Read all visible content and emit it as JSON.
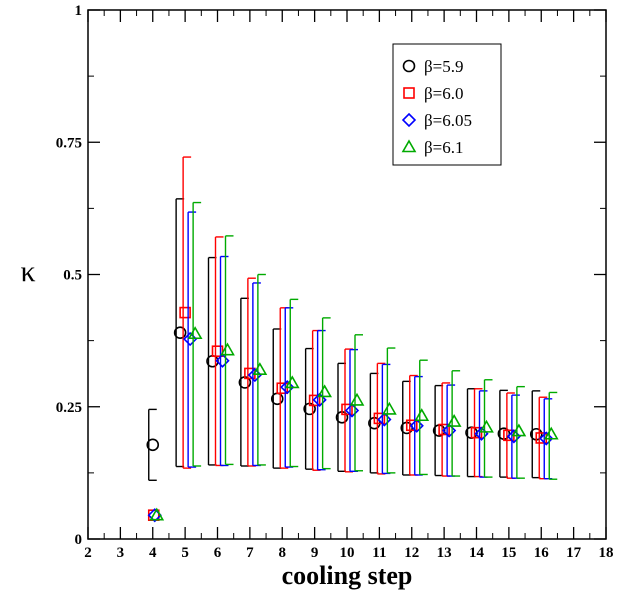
{
  "chart_data": {
    "type": "scatter",
    "title": "",
    "xlabel": "cooling step",
    "ylabel": "κ",
    "xlim": [
      2,
      18
    ],
    "ylim": [
      0,
      1
    ],
    "x_ticks": [
      2,
      3,
      4,
      5,
      6,
      7,
      8,
      9,
      10,
      11,
      12,
      13,
      14,
      15,
      16,
      17,
      18
    ],
    "x_tick_labels": [
      "2",
      "3",
      "4",
      "5",
      "6",
      "7",
      "8",
      "9",
      "10",
      "11",
      "12",
      "13",
      "14",
      "15",
      "16",
      "17",
      "18"
    ],
    "y_ticks": [
      0,
      0.25,
      0.5,
      0.75,
      1
    ],
    "y_tick_labels": [
      "0",
      "0.25",
      "0.5",
      "0.75",
      "1"
    ],
    "grid": false,
    "legend_position": "top-right",
    "series": [
      {
        "name": "β=5.9",
        "marker": "circle",
        "color": "#000000",
        "points": [
          {
            "x": 4,
            "y": 0.178,
            "err_low": 0.111,
            "err_high": 0.245
          },
          {
            "x": 5,
            "y": 0.39,
            "err_low": 0.137,
            "err_high": 0.643
          },
          {
            "x": 6,
            "y": 0.336,
            "err_low": 0.14,
            "err_high": 0.532
          },
          {
            "x": 7,
            "y": 0.296,
            "err_low": 0.138,
            "err_high": 0.455
          },
          {
            "x": 8,
            "y": 0.265,
            "err_low": 0.134,
            "err_high": 0.397
          },
          {
            "x": 9,
            "y": 0.246,
            "err_low": 0.132,
            "err_high": 0.36
          },
          {
            "x": 10,
            "y": 0.23,
            "err_low": 0.128,
            "err_high": 0.332
          },
          {
            "x": 11,
            "y": 0.219,
            "err_low": 0.125,
            "err_high": 0.313
          },
          {
            "x": 12,
            "y": 0.21,
            "err_low": 0.121,
            "err_high": 0.298
          },
          {
            "x": 13,
            "y": 0.205,
            "err_low": 0.12,
            "err_high": 0.29
          },
          {
            "x": 14,
            "y": 0.201,
            "err_low": 0.118,
            "err_high": 0.284
          },
          {
            "x": 15,
            "y": 0.199,
            "err_low": 0.117,
            "err_high": 0.281
          },
          {
            "x": 16,
            "y": 0.198,
            "err_low": 0.116,
            "err_high": 0.28
          }
        ]
      },
      {
        "name": "β=6.0",
        "marker": "square",
        "color": "#ff0000",
        "points": [
          {
            "x": 4,
            "y": 0.045
          },
          {
            "x": 5,
            "y": 0.428,
            "err_low": 0.134,
            "err_high": 0.722
          },
          {
            "x": 6,
            "y": 0.355,
            "err_low": 0.139,
            "err_high": 0.571
          },
          {
            "x": 7,
            "y": 0.313,
            "err_low": 0.138,
            "err_high": 0.493
          },
          {
            "x": 8,
            "y": 0.285,
            "err_low": 0.134,
            "err_high": 0.437
          },
          {
            "x": 9,
            "y": 0.262,
            "err_low": 0.13,
            "err_high": 0.394
          },
          {
            "x": 10,
            "y": 0.245,
            "err_low": 0.127,
            "err_high": 0.359
          },
          {
            "x": 11,
            "y": 0.228,
            "err_low": 0.123,
            "err_high": 0.332
          },
          {
            "x": 12,
            "y": 0.215,
            "err_low": 0.121,
            "err_high": 0.309
          },
          {
            "x": 13,
            "y": 0.207,
            "err_low": 0.119,
            "err_high": 0.295
          },
          {
            "x": 14,
            "y": 0.201,
            "err_low": 0.118,
            "err_high": 0.284
          },
          {
            "x": 15,
            "y": 0.196,
            "err_low": 0.115,
            "err_high": 0.276
          },
          {
            "x": 16,
            "y": 0.191,
            "err_low": 0.114,
            "err_high": 0.268
          }
        ]
      },
      {
        "name": "β=6.05",
        "marker": "diamond",
        "color": "#0000ff",
        "points": [
          {
            "x": 4,
            "y": 0.045
          },
          {
            "x": 5,
            "y": 0.378,
            "err_low": 0.136,
            "err_high": 0.618
          },
          {
            "x": 6,
            "y": 0.337,
            "err_low": 0.139,
            "err_high": 0.534
          },
          {
            "x": 7,
            "y": 0.31,
            "err_low": 0.139,
            "err_high": 0.484
          },
          {
            "x": 8,
            "y": 0.287,
            "err_low": 0.136,
            "err_high": 0.437
          },
          {
            "x": 9,
            "y": 0.263,
            "err_low": 0.131,
            "err_high": 0.394
          },
          {
            "x": 10,
            "y": 0.243,
            "err_low": 0.128,
            "err_high": 0.358
          },
          {
            "x": 11,
            "y": 0.226,
            "err_low": 0.124,
            "err_high": 0.33
          },
          {
            "x": 12,
            "y": 0.214,
            "err_low": 0.121,
            "err_high": 0.307
          },
          {
            "x": 13,
            "y": 0.205,
            "err_low": 0.119,
            "err_high": 0.291
          },
          {
            "x": 14,
            "y": 0.199,
            "err_low": 0.117,
            "err_high": 0.28
          },
          {
            "x": 15,
            "y": 0.194,
            "err_low": 0.115,
            "err_high": 0.272
          },
          {
            "x": 16,
            "y": 0.19,
            "err_low": 0.114,
            "err_high": 0.265
          }
        ]
      },
      {
        "name": "β=6.1",
        "marker": "triangle",
        "color": "#00aa00",
        "points": [
          {
            "x": 4,
            "y": 0.045
          },
          {
            "x": 5,
            "y": 0.388,
            "err_low": 0.138,
            "err_high": 0.636
          },
          {
            "x": 6,
            "y": 0.357,
            "err_low": 0.141,
            "err_high": 0.573
          },
          {
            "x": 7,
            "y": 0.32,
            "err_low": 0.14,
            "err_high": 0.5
          },
          {
            "x": 8,
            "y": 0.295,
            "err_low": 0.137,
            "err_high": 0.453
          },
          {
            "x": 9,
            "y": 0.278,
            "err_low": 0.133,
            "err_high": 0.418
          },
          {
            "x": 10,
            "y": 0.262,
            "err_low": 0.129,
            "err_high": 0.386
          },
          {
            "x": 11,
            "y": 0.245,
            "err_low": 0.125,
            "err_high": 0.361
          },
          {
            "x": 12,
            "y": 0.233,
            "err_low": 0.122,
            "err_high": 0.338
          },
          {
            "x": 13,
            "y": 0.222,
            "err_low": 0.119,
            "err_high": 0.318
          },
          {
            "x": 14,
            "y": 0.211,
            "err_low": 0.117,
            "err_high": 0.301
          },
          {
            "x": 15,
            "y": 0.204,
            "err_low": 0.115,
            "err_high": 0.288
          },
          {
            "x": 16,
            "y": 0.198,
            "err_low": 0.113,
            "err_high": 0.277
          }
        ]
      }
    ]
  }
}
